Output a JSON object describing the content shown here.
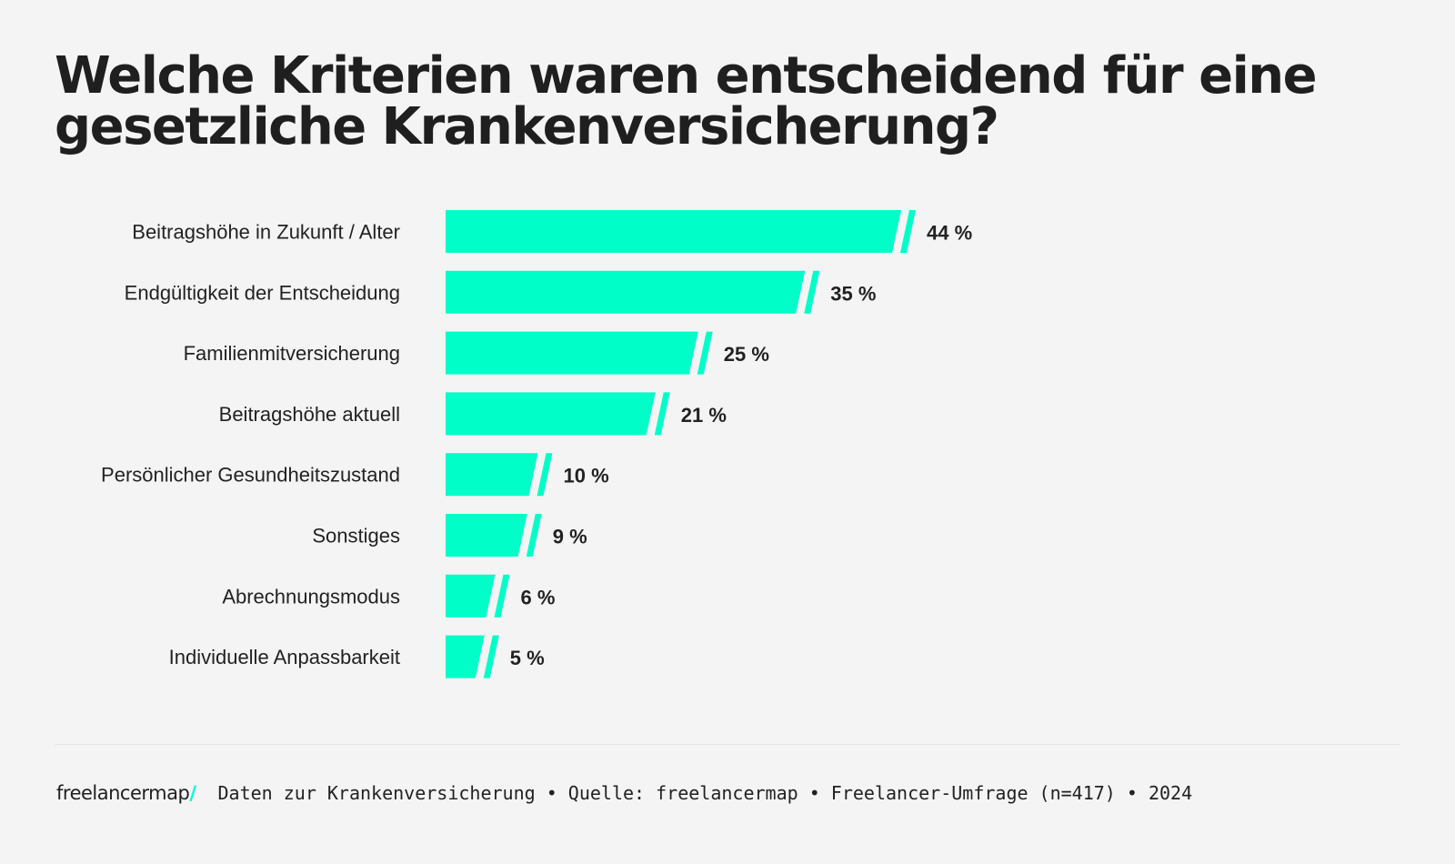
{
  "header": {
    "title": "Welche Kriterien waren entscheidend für eine gesetzliche Krankenversicherung?"
  },
  "footer": {
    "logo_text": "freelancermap",
    "logo_slash": "/",
    "source": "Daten zur Krankenversicherung • Quelle: freelancermap • Freelancer-Umfrage (n=417) • 2024"
  },
  "chart_data": {
    "type": "bar",
    "orientation": "horizontal",
    "title": "Welche Kriterien waren entscheidend für eine gesetzliche Krankenversicherung?",
    "xlabel": "",
    "ylabel": "",
    "unit": "%",
    "bar_color": "#00ffc8",
    "grid": false,
    "categories": [
      "Beitragshöhe in Zukunft / Alter",
      "Endgültigkeit der Entscheidung",
      "Familienmitversicherung",
      "Beitragshöhe aktuell",
      "Persönlicher Gesundheitszustand",
      "Sonstiges",
      "Abrechnungsmodus",
      "Individuelle Anpassbarkeit"
    ],
    "values": [
      44,
      35,
      25,
      21,
      10,
      9,
      6,
      5
    ],
    "value_labels": [
      "44 %",
      "35 %",
      "25 %",
      "21 %",
      "10 %",
      "9 %",
      "6 %",
      "5 %"
    ]
  }
}
